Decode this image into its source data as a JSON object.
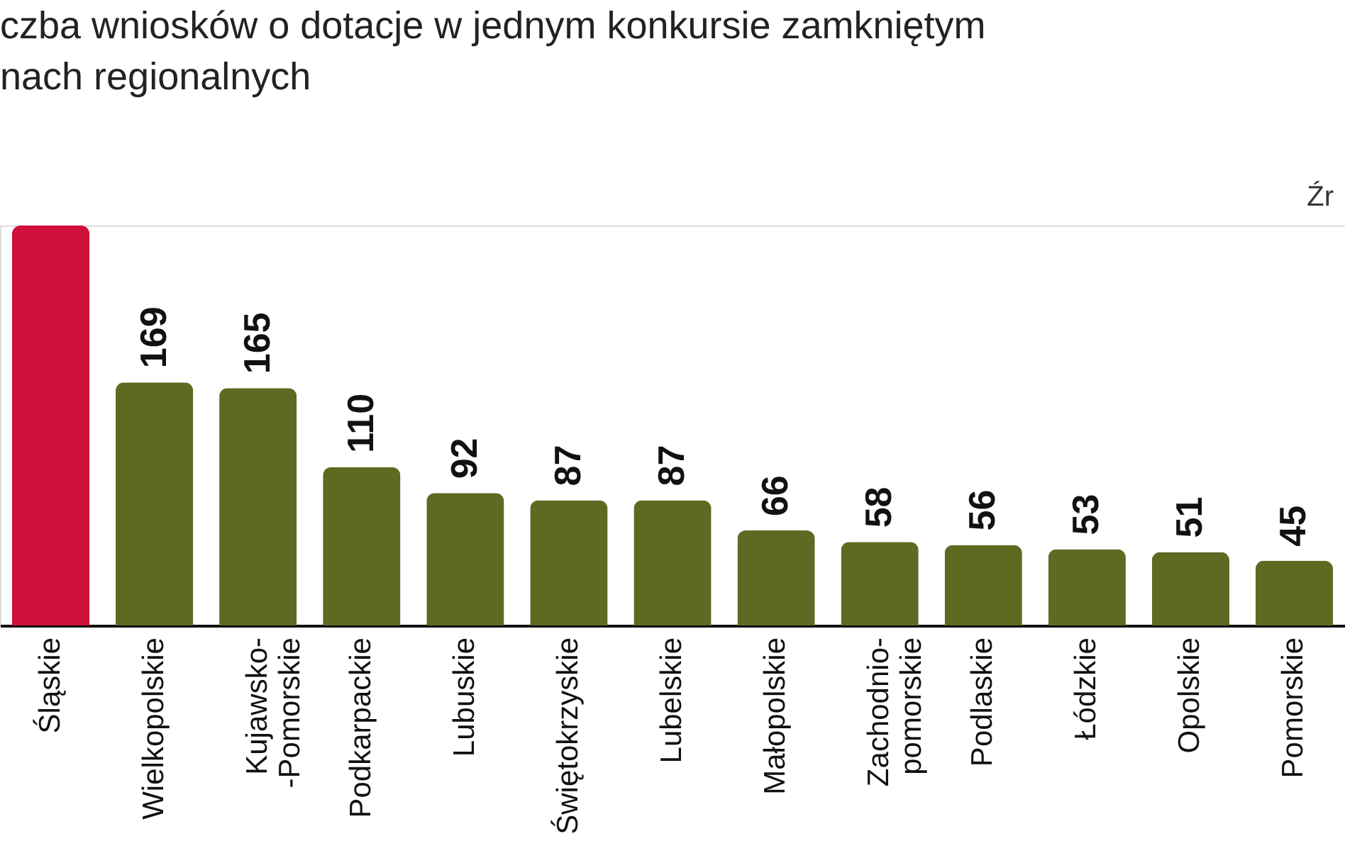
{
  "chart_data": {
    "type": "bar",
    "title": [
      "czba wniosków o dotacje w jednym konkursie zamkniętym",
      "nach regionalnych"
    ],
    "annotations": [
      "Źr"
    ],
    "categories": [
      "Śląskie",
      "Wielkopolskie",
      "Kujawsko-\n-Pomorskie",
      "Podkarpackie",
      "Lubuskie",
      "Świętokrzyskie",
      "Lubelskie",
      "Małopolskie",
      "Zachodnio-\npomorskie",
      "Podlaskie",
      "Łódzkie",
      "Opolskie",
      "Pomorskie"
    ],
    "values": [
      278,
      169,
      165,
      110,
      92,
      87,
      87,
      66,
      58,
      56,
      53,
      51,
      45
    ],
    "value_labels": [
      null,
      "169",
      "165",
      "110",
      "92",
      "87",
      "87",
      "66",
      "58",
      "56",
      "53",
      "51",
      "45"
    ],
    "colors": [
      "#d0103a",
      "#5c6a22",
      "#5c6a22",
      "#5c6a22",
      "#5c6a22",
      "#5c6a22",
      "#5c6a22",
      "#5c6a22",
      "#5c6a22",
      "#5c6a22",
      "#5c6a22",
      "#5c6a22",
      "#5c6a22"
    ],
    "grid": false
  }
}
